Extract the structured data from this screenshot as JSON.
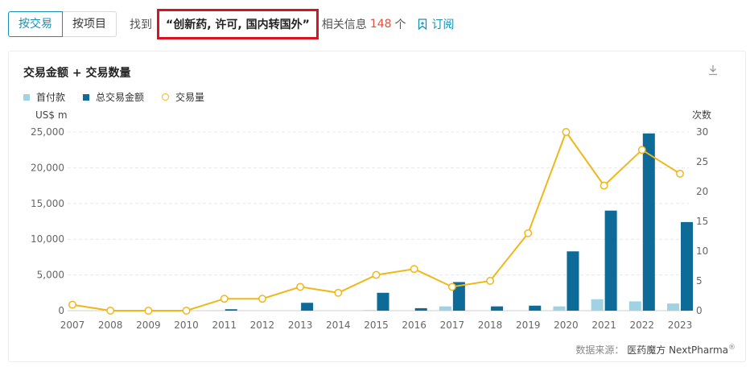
{
  "tabs": [
    {
      "label": "按交易",
      "active": true
    },
    {
      "label": "按项目",
      "active": false
    }
  ],
  "search": {
    "prefix": "找到",
    "query": "“创新药, 许可, 国内转国外”",
    "middle": "相关信息",
    "count": "148",
    "suffix": "个",
    "subscribe_label": "订阅"
  },
  "card": {
    "title": "交易金额 + 交易数量",
    "source_label": "数据来源：",
    "source_brand": "医药魔方 NextPharma",
    "source_mark": "®"
  },
  "colors": {
    "accent": "#1a8fb4",
    "upfront": "#9fd3e4",
    "total": "#0e6a96",
    "count_line": "#f0b71a",
    "highlight": "#d9131f"
  },
  "chart_data": {
    "type": "bar",
    "title": "交易金额 + 交易数量",
    "categories": [
      "2007",
      "2008",
      "2009",
      "2010",
      "2011",
      "2012",
      "2013",
      "2014",
      "2015",
      "2016",
      "2017",
      "2018",
      "2019",
      "2020",
      "2021",
      "2022",
      "2023"
    ],
    "series": [
      {
        "name": "首付款",
        "type": "bar",
        "axis": "left",
        "values": [
          0,
          0,
          0,
          0,
          50,
          0,
          0,
          0,
          80,
          0,
          600,
          0,
          0,
          600,
          1600,
          1300,
          1000
        ]
      },
      {
        "name": "总交易金额",
        "type": "bar",
        "axis": "left",
        "values": [
          0,
          0,
          0,
          0,
          200,
          0,
          1100,
          0,
          2500,
          350,
          4000,
          600,
          700,
          8300,
          14000,
          24800,
          12400
        ]
      },
      {
        "name": "交易量",
        "type": "line",
        "axis": "right",
        "values": [
          1,
          0,
          0,
          0,
          2,
          2,
          4,
          3,
          6,
          7,
          4,
          5,
          13,
          30,
          21,
          27,
          23
        ]
      }
    ],
    "ylabel": "US$ m",
    "ylim": [
      0,
      25000
    ],
    "yticks": [
      "0",
      "5,000",
      "10,000",
      "15,000",
      "20,000",
      "25,000"
    ],
    "y2label": "次数",
    "y2lim": [
      0,
      30
    ],
    "y2ticks": [
      "0",
      "5",
      "10",
      "15",
      "20",
      "25",
      "30"
    ],
    "legend_position": "top-left",
    "grid": true
  }
}
